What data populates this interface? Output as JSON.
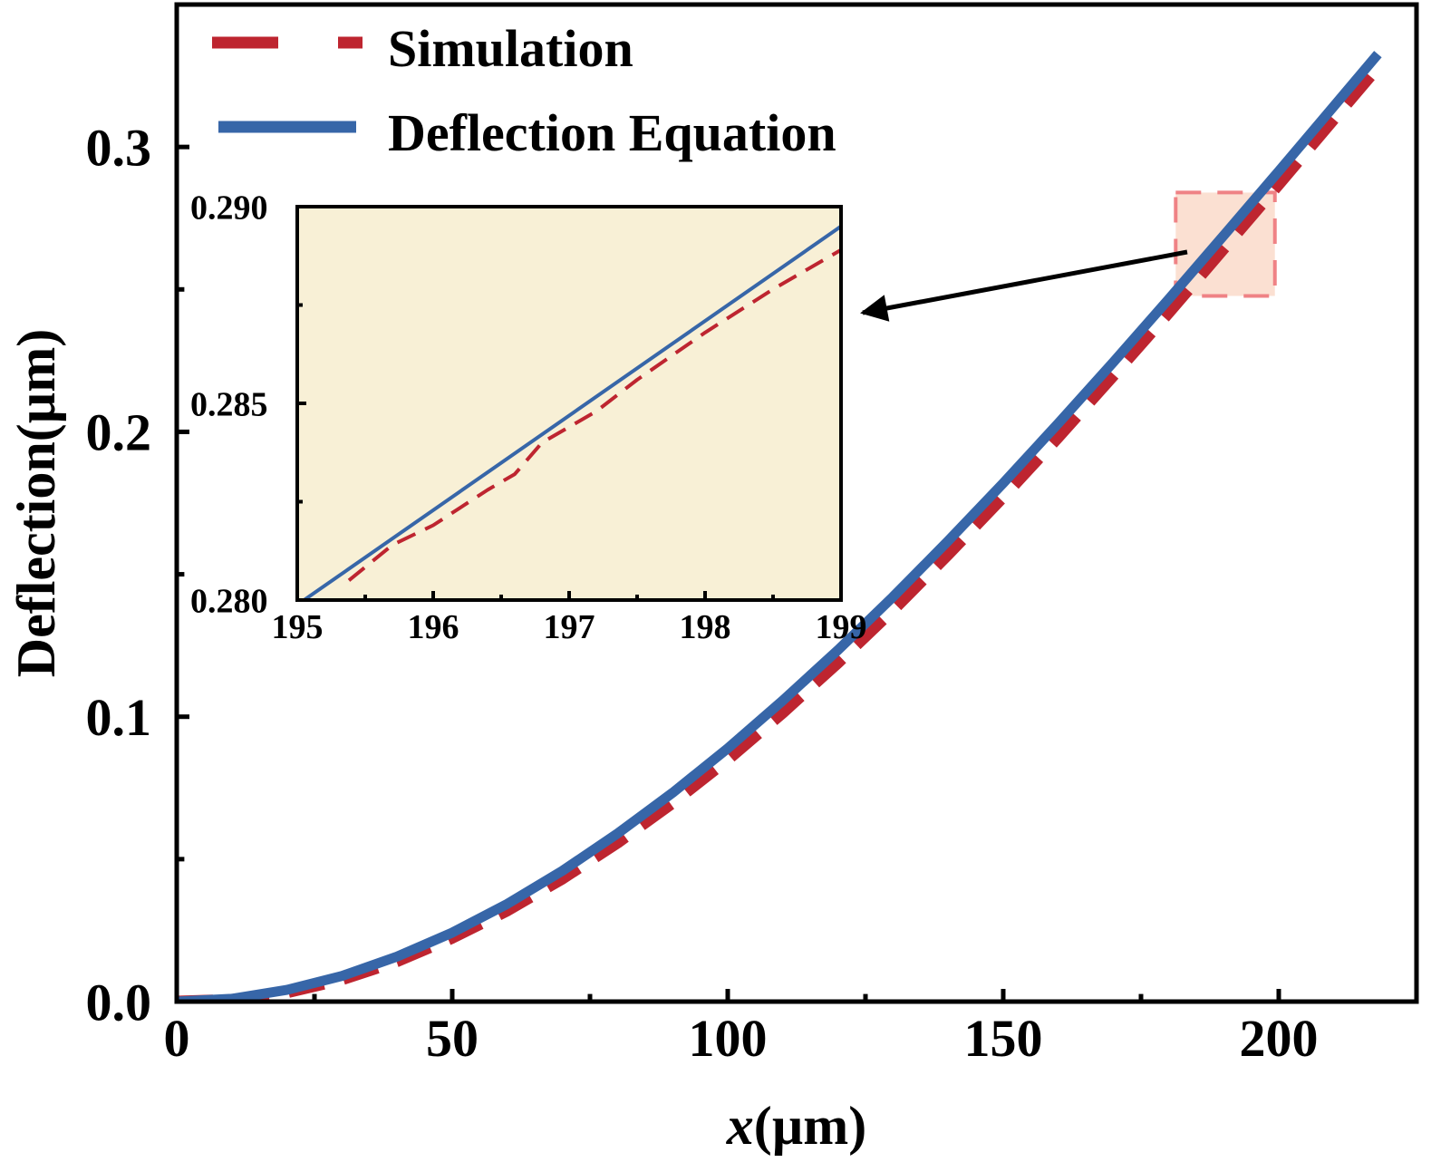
{
  "chart_data": [
    {
      "type": "line",
      "xlabel": "x(µm)",
      "xlabel_italic_part": "x",
      "xlabel_unit_part": "(µm)",
      "ylabel": "Deflection(µm)",
      "xlim": [
        0,
        225
      ],
      "ylim": [
        0,
        0.35
      ],
      "xticks": [
        0,
        50,
        100,
        150,
        200
      ],
      "xtick_labels": [
        "0",
        "50",
        "100",
        "150",
        "200"
      ],
      "yticks": [
        0.0,
        0.1,
        0.2,
        0.3
      ],
      "ytick_labels": [
        "0.0",
        "0.1",
        "0.2",
        "0.3"
      ],
      "grid": false,
      "legend_placement": "top-left",
      "series": [
        {
          "name": "Simulation",
          "style": "dashed",
          "color": "#be2530",
          "x": [
            0,
            10,
            20,
            30,
            40,
            50,
            60,
            70,
            80,
            90,
            100,
            110,
            120,
            130,
            140,
            150,
            160,
            170,
            180,
            190,
            200,
            210,
            218
          ],
          "y": [
            0,
            0.0006,
            0.0032,
            0.0078,
            0.0142,
            0.0224,
            0.032,
            0.0432,
            0.0558,
            0.0698,
            0.085,
            0.1015,
            0.119,
            0.1375,
            0.157,
            0.1772,
            0.1982,
            0.2198,
            0.2418,
            0.2643,
            0.2869,
            0.3098,
            0.328
          ]
        },
        {
          "name": "Deflection Equation",
          "style": "solid",
          "color": "#3766a8",
          "x": [
            0,
            10,
            20,
            30,
            40,
            50,
            60,
            70,
            80,
            90,
            100,
            110,
            120,
            130,
            140,
            150,
            160,
            170,
            180,
            190,
            200,
            210,
            218
          ],
          "y": [
            0,
            0.001,
            0.0041,
            0.009,
            0.0158,
            0.0242,
            0.0343,
            0.0459,
            0.059,
            0.0733,
            0.0889,
            0.1057,
            0.1234,
            0.1421,
            0.1617,
            0.182,
            0.203,
            0.2245,
            0.2465,
            0.2689,
            0.2915,
            0.3143,
            0.3326
          ]
        }
      ],
      "highlight_region": {
        "x": [
          181.3,
          199.3
        ],
        "y": [
          0.2477,
          0.284
        ],
        "fill": "#fbe0d2",
        "stroke": "#ef8285"
      }
    },
    {
      "type": "line",
      "role": "inset",
      "background": "#f8f0d6",
      "xlim": [
        195,
        199
      ],
      "ylim": [
        0.28,
        0.29
      ],
      "xticks": [
        195,
        196,
        197,
        198,
        199
      ],
      "xtick_labels": [
        "195",
        "196",
        "197",
        "198",
        "199"
      ],
      "yticks": [
        0.28,
        0.285,
        0.29
      ],
      "ytick_labels": [
        "0.280",
        "0.285",
        "0.290"
      ],
      "series": [
        {
          "name": "Simulation",
          "style": "dashed",
          "color": "#be2530",
          "x": [
            195.38,
            195.7,
            196.0,
            196.4,
            196.6,
            196.8,
            197.2,
            197.5,
            198.0,
            198.5,
            199.0
          ],
          "y": [
            0.2805,
            0.2814,
            0.2819,
            0.2828,
            0.2832,
            0.284,
            0.2848,
            0.2856,
            0.2868,
            0.2879,
            0.2889
          ]
        },
        {
          "name": "Deflection Equation",
          "style": "solid",
          "color": "#3766a8",
          "x": [
            195.05,
            199.0
          ],
          "y": [
            0.28,
            0.2895
          ]
        }
      ]
    }
  ]
}
